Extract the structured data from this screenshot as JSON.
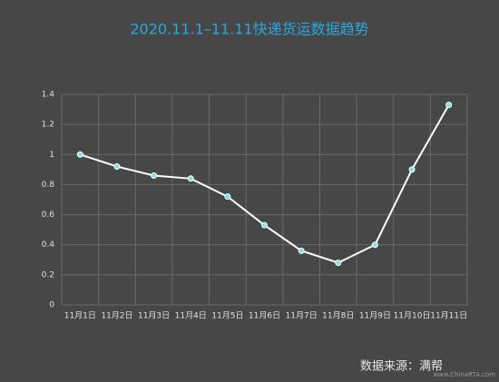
{
  "chart_data": {
    "type": "line",
    "title": "2020.11.1–11.11快递货运数据趋势",
    "categories": [
      "11月1日",
      "11月2日",
      "11月3日",
      "11月4日",
      "11月5日",
      "11月6日",
      "11月7日",
      "11月8日",
      "11月9日",
      "11月10日",
      "11月11日"
    ],
    "values": [
      1.0,
      0.92,
      0.86,
      0.84,
      0.72,
      0.53,
      0.36,
      0.28,
      0.4,
      0.9,
      1.33
    ],
    "color": "#ffffff",
    "marker_color": "#7fe3e3",
    "ylim": [
      0,
      1.4
    ],
    "yticks": [
      0,
      0.2,
      0.4,
      0.6,
      0.8,
      1,
      1.2,
      1.4
    ],
    "grid": true,
    "source": "数据来源：满帮",
    "watermark": "www.ChinaRTA.com"
  }
}
